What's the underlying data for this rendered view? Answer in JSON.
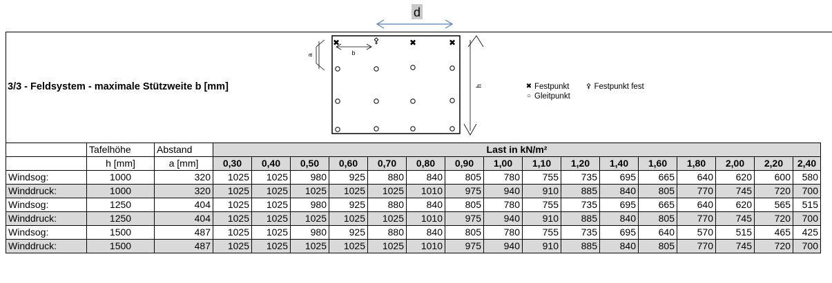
{
  "title": "3/3 - Feldsystem - maximale Stützweite b [mm]",
  "diagram": {
    "d_label": "d",
    "a_label": "a",
    "b_label": "b",
    "h_label": "h"
  },
  "legend": {
    "festpunkt": "Festpunkt",
    "festpunkt_fest": "Festpunkt fest",
    "gleitpunkt": "Gleitpunkt"
  },
  "table": {
    "col_tafelhoehe": "Tafelhöhe",
    "col_abstand": "Abstand",
    "unit_h": "h [mm]",
    "unit_a": "a [mm]",
    "last_header": "Last in kN/m²",
    "loads": [
      "0,30",
      "0,40",
      "0,50",
      "0,60",
      "0,70",
      "0,80",
      "0,90",
      "1,00",
      "1,10",
      "1,20",
      "1,40",
      "1,60",
      "1,80",
      "2,00",
      "2,20",
      "2,40"
    ],
    "rows": [
      {
        "label": "Windsog:",
        "h": "1000",
        "a": "320",
        "values": [
          "1025",
          "1025",
          "980",
          "925",
          "880",
          "840",
          "805",
          "780",
          "755",
          "735",
          "695",
          "665",
          "640",
          "620",
          "600",
          "580"
        ]
      },
      {
        "label": "Winddruck:",
        "h": "1000",
        "a": "320",
        "values": [
          "1025",
          "1025",
          "1025",
          "1025",
          "1025",
          "1010",
          "975",
          "940",
          "910",
          "885",
          "840",
          "805",
          "770",
          "745",
          "720",
          "700"
        ]
      },
      {
        "label": "Windsog:",
        "h": "1250",
        "a": "404",
        "values": [
          "1025",
          "1025",
          "980",
          "925",
          "880",
          "840",
          "805",
          "780",
          "755",
          "735",
          "695",
          "665",
          "640",
          "620",
          "565",
          "515"
        ]
      },
      {
        "label": "Winddruck:",
        "h": "1250",
        "a": "404",
        "values": [
          "1025",
          "1025",
          "1025",
          "1025",
          "1025",
          "1010",
          "975",
          "940",
          "910",
          "885",
          "840",
          "805",
          "770",
          "745",
          "720",
          "700"
        ]
      },
      {
        "label": "Windsog:",
        "h": "1500",
        "a": "487",
        "values": [
          "1025",
          "1025",
          "980",
          "925",
          "880",
          "840",
          "805",
          "780",
          "755",
          "735",
          "695",
          "640",
          "570",
          "515",
          "465",
          "425"
        ]
      },
      {
        "label": "Winddruck:",
        "h": "1500",
        "a": "487",
        "values": [
          "1025",
          "1025",
          "1025",
          "1025",
          "1025",
          "1010",
          "975",
          "940",
          "910",
          "885",
          "840",
          "805",
          "770",
          "745",
          "720",
          "700"
        ]
      }
    ]
  },
  "colors": {
    "grey_row": "#d9d9d9",
    "arrow_blue": "#4f81bd",
    "d_box": "#c8c8c8"
  }
}
